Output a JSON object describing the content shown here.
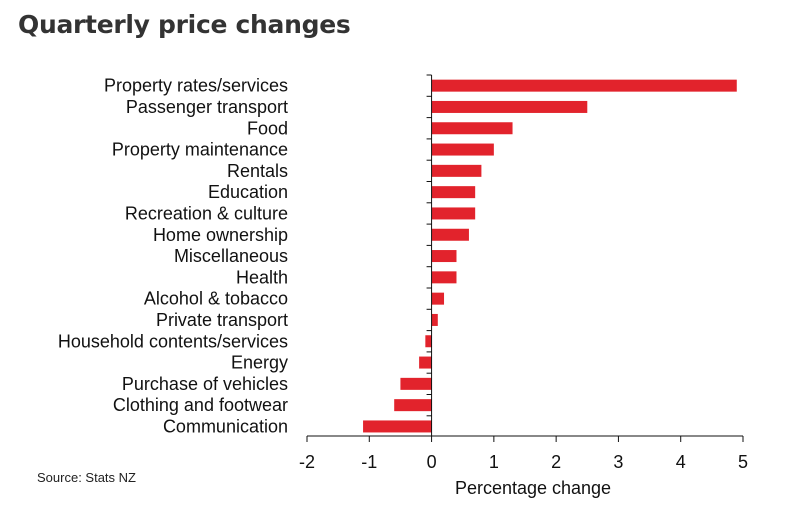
{
  "chart_data": {
    "type": "bar",
    "orientation": "horizontal",
    "title": "Quarterly price changes",
    "categories": [
      "Property rates/services",
      "Passenger transport",
      "Food",
      "Property maintenance",
      "Rentals",
      "Education",
      "Recreation & culture",
      "Home ownership",
      "Miscellaneous",
      "Health",
      "Alcohol & tobacco",
      "Private transport",
      "Household contents/services",
      "Energy",
      "Purchase of vehicles",
      "Clothing and footwear",
      "Communication"
    ],
    "values": [
      4.9,
      2.5,
      1.3,
      1.0,
      0.8,
      0.7,
      0.7,
      0.6,
      0.4,
      0.4,
      0.2,
      0.1,
      -0.1,
      -0.2,
      -0.5,
      -0.6,
      -1.1
    ],
    "xlabel": "Percentage change",
    "ylabel": "",
    "xlim": [
      -2,
      5
    ],
    "xticks": [
      -2,
      -1,
      0,
      1,
      2,
      3,
      4,
      5
    ],
    "bar_color": "#e2232c",
    "grid": false,
    "source": "Source: Stats NZ"
  }
}
